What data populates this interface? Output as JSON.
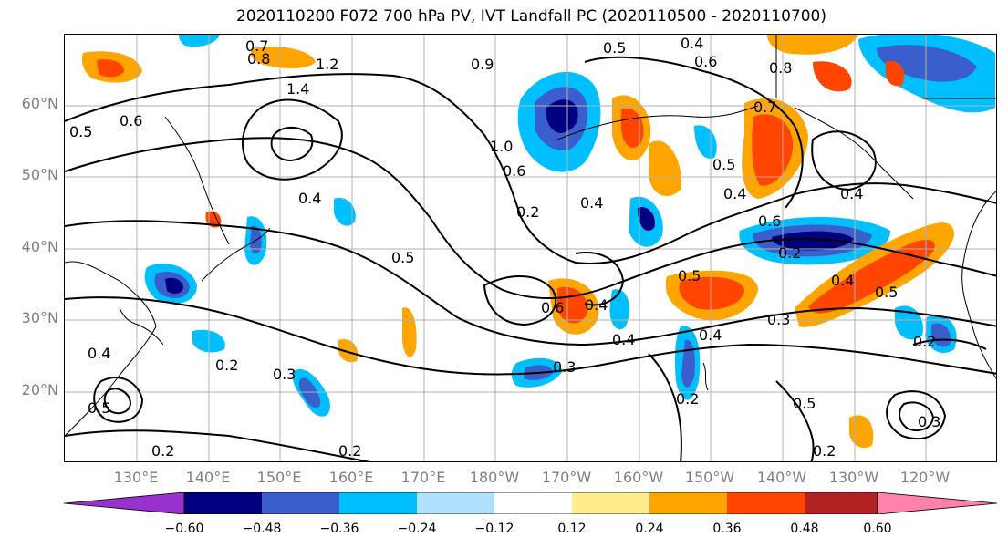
{
  "title": "2020110200 F072 700 hPa PV, IVT Landfall PC (2020110500 - 2020110700)",
  "map": {
    "lat_labels": [
      "60°N",
      "50°N",
      "40°N",
      "30°N",
      "20°N"
    ],
    "lon_labels": [
      "130°E",
      "140°E",
      "150°E",
      "160°E",
      "170°E",
      "180°W",
      "170°W",
      "160°W",
      "150°W",
      "140°W",
      "130°W",
      "120°W"
    ],
    "gridlines": true,
    "contour_labels": [
      "0.7",
      "0.8",
      "1.2",
      "1.4",
      "0.5",
      "0.6",
      "0.9",
      "0.5",
      "0.4",
      "0.6",
      "0.4",
      "0.5",
      "1.0",
      "0.6",
      "0.2",
      "0.4",
      "0.8",
      "0.7",
      "0.5",
      "0.4",
      "0.6",
      "0.2",
      "0.5",
      "0.3",
      "0.4",
      "0.5",
      "0.6",
      "0.4",
      "0.4",
      "0.3",
      "0.4",
      "0.2",
      "0.3",
      "0.2",
      "0.5",
      "0.2",
      "0.3",
      "0.2",
      "0.5",
      "0.2",
      "0.4",
      "0.4",
      "0.2"
    ]
  },
  "colorbar": {
    "ticks": [
      "−0.60",
      "−0.48",
      "−0.36",
      "−0.24",
      "−0.12",
      "0.12",
      "0.24",
      "0.36",
      "0.48",
      "0.60"
    ],
    "colors": [
      "#9932cc",
      "#000080",
      "#3a5fcd",
      "#00bfff",
      "#b0e2ff",
      "#ffffff",
      "#ffec8b",
      "#ffa500",
      "#ff4500",
      "#b22222",
      "#ff82ab"
    ]
  }
}
